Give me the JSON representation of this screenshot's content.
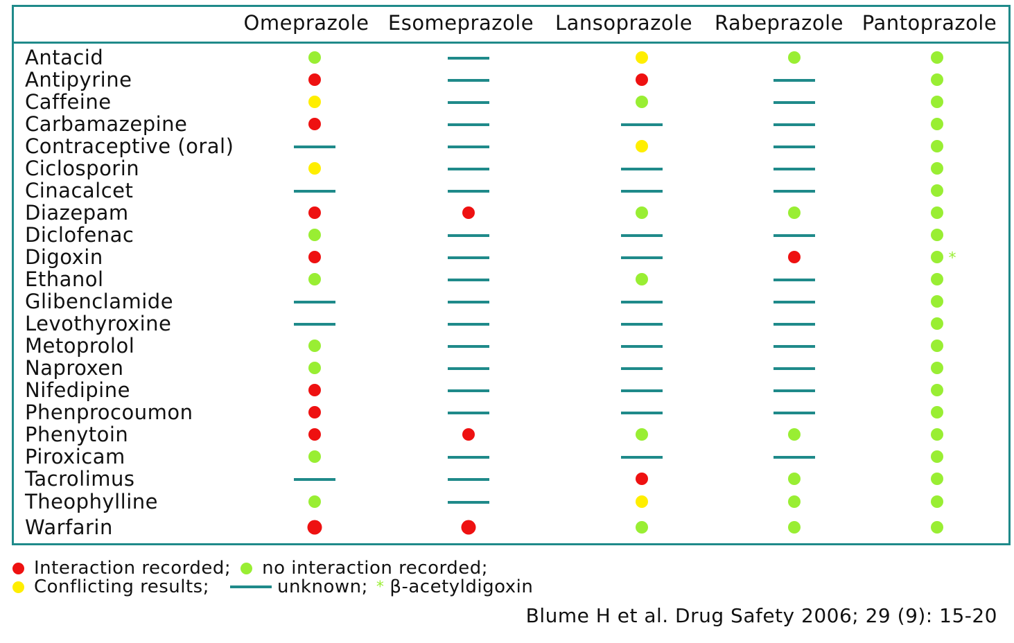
{
  "colors": {
    "border": "#1f8a8a",
    "interaction": "#ee1111",
    "no_interaction": "#99ee33",
    "conflicting": "#ffee00",
    "unknown": "#1f8a8a"
  },
  "columns": [
    "Omeprazole",
    "Esomeprazole",
    "Lansoprazole",
    "Rabeprazole",
    "Pantoprazole"
  ],
  "rows": [
    {
      "drug": "Antacid",
      "values": [
        "G",
        "U",
        "Y",
        "G",
        "G"
      ]
    },
    {
      "drug": "Antipyrine",
      "values": [
        "R",
        "U",
        "R",
        "U",
        "G"
      ]
    },
    {
      "drug": "Caffeine",
      "values": [
        "Y",
        "U",
        "G",
        "U",
        "G"
      ]
    },
    {
      "drug": "Carbamazepine",
      "values": [
        "R",
        "U",
        "U",
        "U",
        "G"
      ]
    },
    {
      "drug": "Contraceptive (oral)",
      "values": [
        "U",
        "U",
        "Y",
        "U",
        "G"
      ]
    },
    {
      "drug": "Ciclosporin",
      "values": [
        "Y",
        "U",
        "U",
        "U",
        "G"
      ]
    },
    {
      "drug": "Cinacalcet",
      "values": [
        "U",
        "U",
        "U",
        "U",
        "G"
      ]
    },
    {
      "drug": "Diazepam",
      "values": [
        "R",
        "R",
        "G",
        "G",
        "G"
      ]
    },
    {
      "drug": "Diclofenac",
      "values": [
        "G",
        "U",
        "U",
        "U",
        "G"
      ]
    },
    {
      "drug": "Digoxin",
      "values": [
        "R",
        "U",
        "U",
        "R",
        "G*"
      ]
    },
    {
      "drug": "Ethanol",
      "values": [
        "G",
        "U",
        "G",
        "U",
        "G"
      ]
    },
    {
      "drug": "Glibenclamide",
      "values": [
        "U",
        "U",
        "U",
        "U",
        "G"
      ]
    },
    {
      "drug": "Levothyroxine",
      "values": [
        "U",
        "U",
        "U",
        "U",
        "G"
      ]
    },
    {
      "drug": "Metoprolol",
      "values": [
        "G",
        "U",
        "U",
        "U",
        "G"
      ]
    },
    {
      "drug": "Naproxen",
      "values": [
        "G",
        "U",
        "U",
        "U",
        "G"
      ]
    },
    {
      "drug": "Nifedipine",
      "values": [
        "R",
        "U",
        "U",
        "U",
        "G"
      ]
    },
    {
      "drug": "Phenprocoumon",
      "values": [
        "R",
        "U",
        "U",
        "U",
        "G"
      ]
    },
    {
      "drug": "Phenytoin",
      "values": [
        "R",
        "R",
        "G",
        "G",
        "G"
      ]
    },
    {
      "drug": "Piroxicam",
      "values": [
        "G",
        "U",
        "U",
        "U",
        "G"
      ]
    },
    {
      "drug": "Tacrolimus",
      "values": [
        "U",
        "U",
        "R",
        "G",
        "G"
      ]
    },
    {
      "drug": "Theophylline",
      "values": [
        "G",
        "U",
        "Y",
        "G",
        "G"
      ]
    },
    {
      "drug": "Warfarin",
      "values": [
        "R",
        "R",
        "G",
        "G",
        "G"
      ]
    }
  ],
  "legend": {
    "interaction": "Interaction recorded;",
    "no_interaction": "no interaction recorded;",
    "conflicting": "Conflicting results;",
    "unknown": "unknown;",
    "asterisk_symbol": "*",
    "asterisk_note": "β-acetyldigoxin"
  },
  "citation": "Blume H et al. Drug Safety 2006; 29 (9): 15-20"
}
